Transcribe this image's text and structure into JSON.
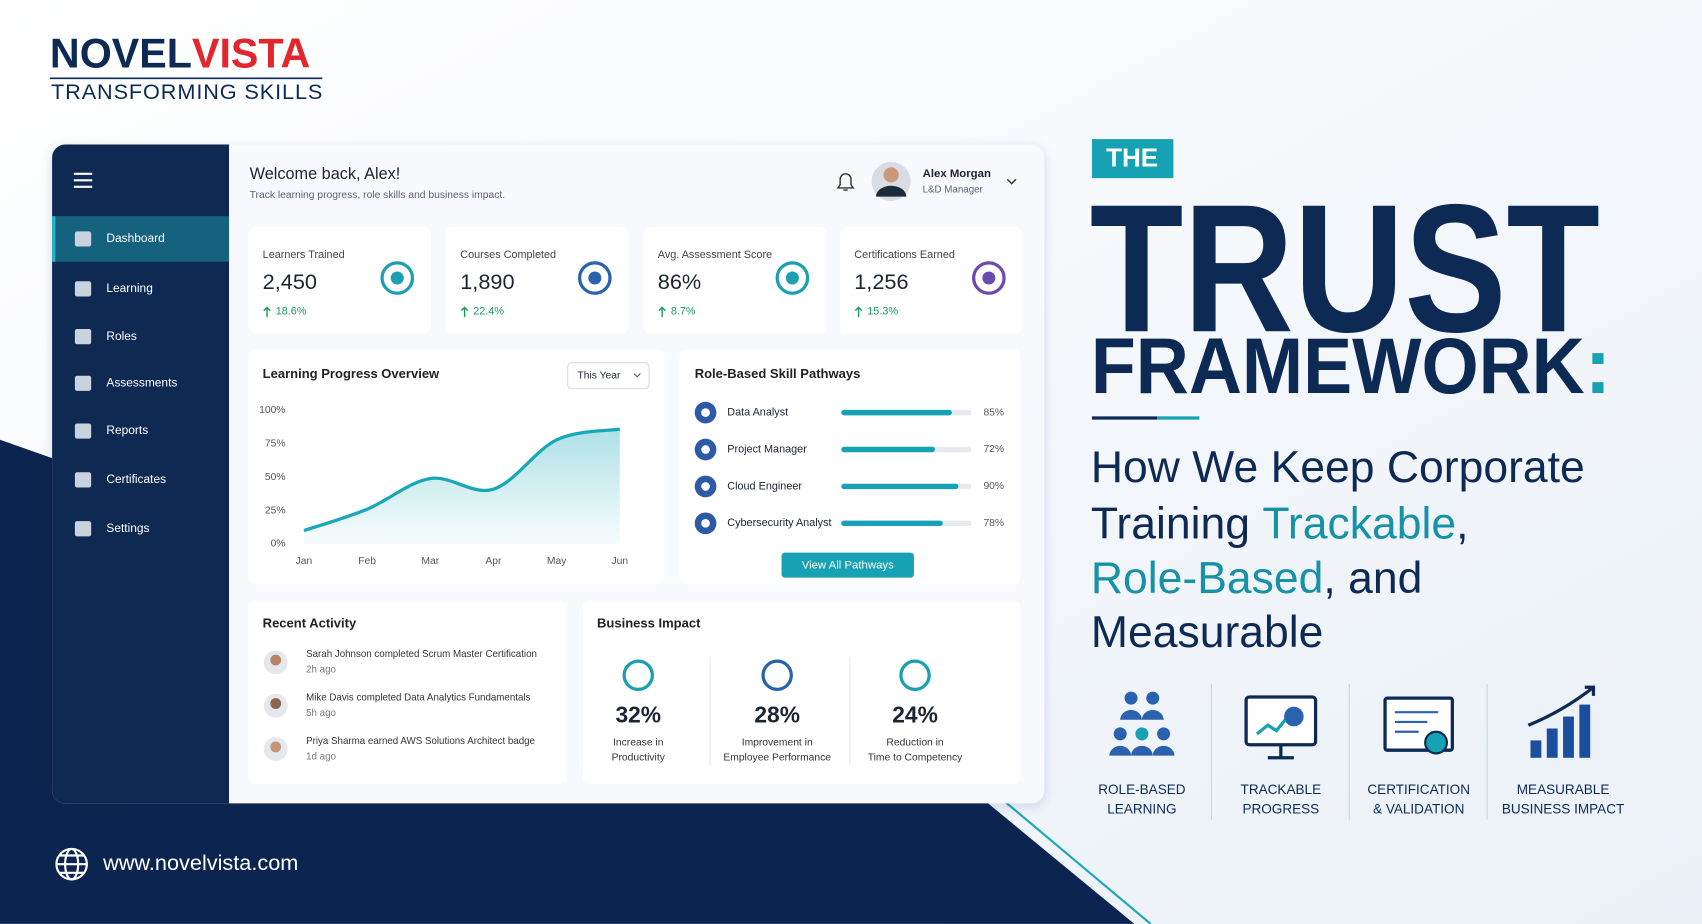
{
  "logo": {
    "primary": "NOVEL",
    "accent": "VISTA",
    "tagline": "TRANSFORMING SKILLS"
  },
  "sidebar": [
    "Dashboard",
    "Learning",
    "Roles",
    "Assessments",
    "Reports",
    "Certificates",
    "Settings"
  ],
  "header": {
    "welcome": "Welcome back, Alex!",
    "subtitle": "Track learning progress, role skills and business impact.",
    "user_name": "Alex Morgan",
    "user_role": "L&D Manager"
  },
  "stats": [
    {
      "label": "Learners Trained",
      "value": "2,450",
      "change": "18.6%"
    },
    {
      "label": "Courses Completed",
      "value": "1,890",
      "change": "22.4%"
    },
    {
      "label": "Avg. Assessment Score",
      "value": "86%",
      "change": "8.7%"
    },
    {
      "label": "Certifications Earned",
      "value": "1,256",
      "change": "15.3%"
    }
  ],
  "chart_data": [
    {
      "type": "line",
      "title": "Learning Progress Overview",
      "filter": "This Year",
      "categories": [
        "Jan",
        "Feb",
        "Mar",
        "Apr",
        "May",
        "Jun"
      ],
      "values": [
        10,
        26,
        49,
        41,
        78,
        86
      ],
      "color": "#17a7b6",
      "ylim": [
        0,
        100
      ],
      "yticks": [
        {
          "value": 0,
          "label": "0%"
        },
        {
          "value": 25,
          "label": "25%"
        },
        {
          "value": 50,
          "label": "50%"
        },
        {
          "value": 75,
          "label": "75%"
        },
        {
          "value": 100,
          "label": "100%"
        }
      ]
    },
    {
      "type": "bar",
      "orientation": "horizontal",
      "title": "Role-Based Skill Pathways",
      "categories": [
        "Data Analyst",
        "Project Manager",
        "Cloud Engineer",
        "Cybersecurity Analyst"
      ],
      "values": [
        85,
        72,
        90,
        78
      ],
      "value_labels": [
        "85%",
        "72%",
        "90%",
        "78%"
      ],
      "xlim": [
        0,
        100
      ],
      "color": "#17a2b3",
      "button": "View All Pathways"
    }
  ],
  "activity": {
    "title": "Recent Activity",
    "items": [
      {
        "text": "Sarah Johnson completed Scrum Master Certification",
        "time": "2h ago"
      },
      {
        "text": "Mike Davis completed Data Analytics Fundamentals",
        "time": "5h ago"
      },
      {
        "text": "Priya Sharma earned AWS Solutions Architect badge",
        "time": "1d ago"
      }
    ]
  },
  "impact": {
    "title": "Business Impact",
    "items": [
      {
        "value": "32%",
        "label": [
          "Increase in",
          "Productivity"
        ]
      },
      {
        "value": "28%",
        "label": [
          "Improvement in",
          "Employee Performance"
        ]
      },
      {
        "value": "24%",
        "label": [
          "Reduction in",
          "Time to Competency"
        ]
      }
    ]
  },
  "hero": {
    "badge": "THE",
    "title": "TRUST",
    "title2": "FRAMEWORK",
    "colon": ":",
    "subtitle": [
      "How We Keep Corporate",
      "Training ",
      "Trackable",
      ",",
      "Role-Based",
      ", and",
      "Measurable"
    ]
  },
  "features": [
    [
      "ROLE-BASED",
      "LEARNING"
    ],
    [
      "TRACKABLE",
      "PROGRESS"
    ],
    [
      "CERTIFICATION",
      "& VALIDATION"
    ],
    [
      "MEASURABLE",
      "BUSINESS IMPACT"
    ]
  ],
  "website": "www.novelvista.com"
}
